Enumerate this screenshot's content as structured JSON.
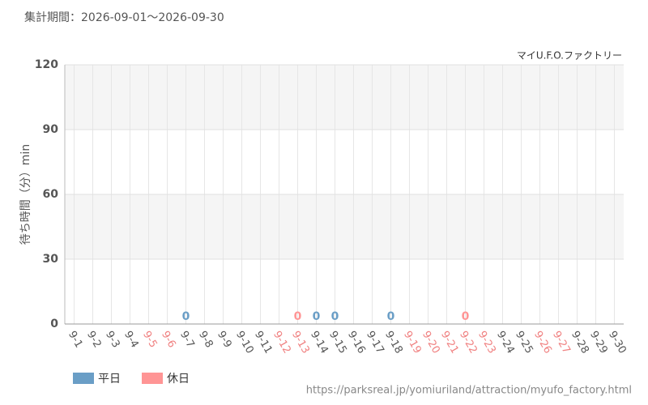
{
  "chart_data": {
    "type": "bar",
    "title": "集計期間：2026-09-01～2026-09-30",
    "subtitle": "マイU.F.O.ファクトリー",
    "y_label": "待ち時間（分）min",
    "source": "https://parksreal.jp/yomiuriland/attraction/myufo_factory.html",
    "categories": [
      "9-1",
      "9-2",
      "9-3",
      "9-4",
      "9-5",
      "9-6",
      "9-7",
      "9-8",
      "9-9",
      "9-10",
      "9-11",
      "9-12",
      "9-13",
      "9-14",
      "9-15",
      "9-16",
      "9-17",
      "9-18",
      "9-19",
      "9-20",
      "9-21",
      "9-22",
      "9-23",
      "9-24",
      "9-25",
      "9-26",
      "9-27",
      "9-28",
      "9-29",
      "9-30"
    ],
    "category_colors": [
      "#555",
      "#555",
      "#555",
      "#555",
      "#f08080",
      "#f08080",
      "#555",
      "#555",
      "#555",
      "#555",
      "#555",
      "#f08080",
      "#f08080",
      "#555",
      "#555",
      "#555",
      "#555",
      "#555",
      "#f08080",
      "#f08080",
      "#f08080",
      "#f08080",
      "#f08080",
      "#555",
      "#555",
      "#f08080",
      "#f08080",
      "#555",
      "#555",
      "#555"
    ],
    "series": [
      {
        "name": "平日",
        "color": "#6a9ec6",
        "values": [
          null,
          null,
          null,
          null,
          null,
          null,
          0,
          null,
          null,
          null,
          null,
          null,
          null,
          0,
          0,
          null,
          null,
          0,
          null,
          null,
          null,
          null,
          null,
          null,
          null,
          null,
          null,
          null,
          null,
          null
        ]
      },
      {
        "name": "休日",
        "color": "#ff9595",
        "values": [
          null,
          null,
          null,
          null,
          null,
          null,
          null,
          null,
          null,
          null,
          null,
          null,
          0,
          null,
          null,
          null,
          null,
          null,
          null,
          null,
          null,
          0,
          null,
          null,
          null,
          null,
          null,
          null,
          null,
          null
        ]
      }
    ],
    "ylim": [
      0,
      120
    ],
    "yticks": [
      0,
      30,
      60,
      90,
      120
    ],
    "grid": true,
    "legend": "bottom-left"
  }
}
